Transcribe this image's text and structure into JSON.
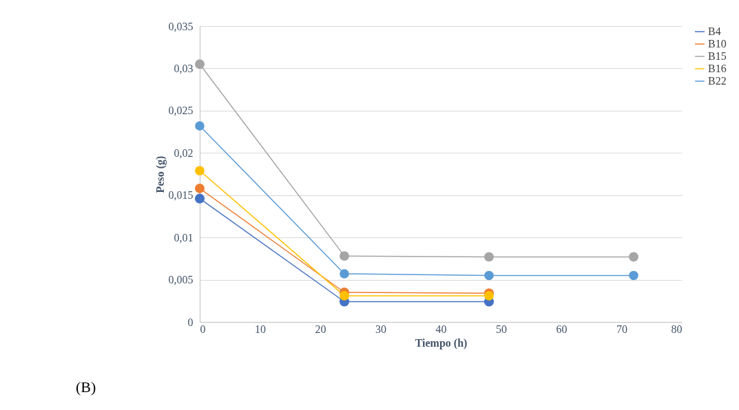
{
  "chart_data": {
    "type": "line",
    "xlabel": "Tiempo (h)",
    "ylabel": "Peso (g)",
    "annotations": [
      "(B)"
    ],
    "xlim": [
      0,
      80
    ],
    "xticks": [
      0,
      10,
      20,
      30,
      40,
      50,
      60,
      70,
      80
    ],
    "ylim": [
      0,
      0.035
    ],
    "yticks": [
      0,
      {
        "value": 0.005,
        "label": "0,005"
      },
      {
        "value": 0.01,
        "label": "0,01"
      },
      {
        "value": 0.015,
        "label": "0,015"
      },
      {
        "value": 0.02,
        "label": "0,02"
      },
      {
        "value": 0.025,
        "label": "0,025"
      },
      {
        "value": 0.03,
        "label": "0,03"
      },
      {
        "value": 0.035,
        "label": "0,035"
      }
    ],
    "grid": "y",
    "legend": "right",
    "marker": "circle",
    "line_style": "solid",
    "series": [
      {
        "name": "B4",
        "color": "#4472c4",
        "x": [
          0,
          24,
          48
        ],
        "values": [
          0.0146,
          0.0024,
          0.0024
        ]
      },
      {
        "name": "B10",
        "color": "#ed7d31",
        "x": [
          0,
          24,
          48
        ],
        "values": [
          0.0158,
          0.0035,
          0.0034
        ]
      },
      {
        "name": "B15",
        "color": "#a5a5a5",
        "x": [
          0,
          24,
          48,
          72
        ],
        "values": [
          0.0305,
          0.0078,
          0.0077,
          0.0077
        ]
      },
      {
        "name": "B16",
        "color": "#ffc000",
        "x": [
          0,
          24,
          48
        ],
        "values": [
          0.0179,
          0.0031,
          0.0031
        ]
      },
      {
        "name": "B22",
        "color": "#5b9bd5",
        "x": [
          0,
          24,
          48,
          72
        ],
        "values": [
          0.0232,
          0.0057,
          0.0055,
          0.0055
        ]
      }
    ]
  }
}
